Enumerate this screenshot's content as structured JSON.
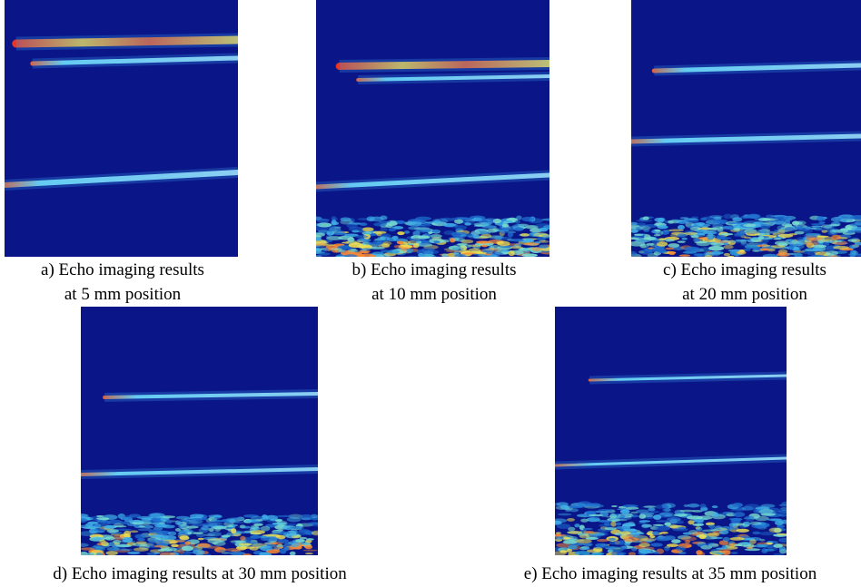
{
  "panels": [
    {
      "caption_lines": [
        "a) Echo imaging results",
        "at 5 mm position"
      ]
    },
    {
      "caption_lines": [
        "b) Echo imaging results",
        "at 10 mm position"
      ]
    },
    {
      "caption_lines": [
        "c) Echo imaging results",
        "at 20 mm position"
      ]
    },
    {
      "caption_lines": [
        "d) Echo imaging results at 30 mm position"
      ]
    },
    {
      "caption_lines": [
        "e) Echo imaging results at 35 mm position"
      ]
    }
  ]
}
